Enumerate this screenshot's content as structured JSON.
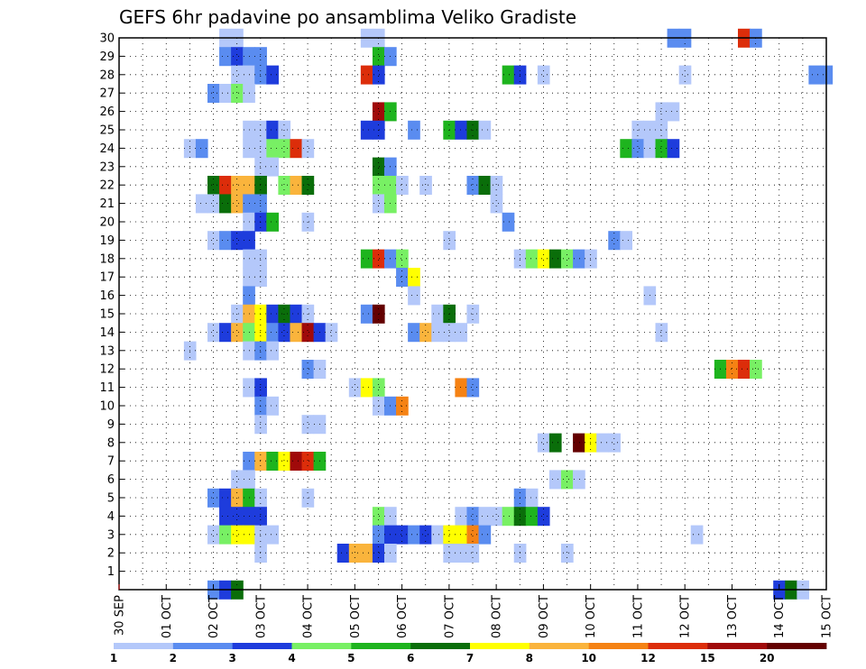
{
  "chart_data": {
    "type": "heatmap",
    "title": "GEFS 6hr padavine po ansamblima Veliko Gradiste",
    "x_tick_labels": [
      "30 SEP",
      "01 OCT",
      "02 OCT",
      "03 OCT",
      "04 OCT",
      "05 OCT",
      "06 OCT",
      "07 OCT",
      "08 OCT",
      "09 OCT",
      "10 OCT",
      "11 OCT",
      "12 OCT",
      "13 OCT",
      "14 OCT",
      "15 OCT"
    ],
    "x_range_days": [
      0,
      15
    ],
    "y_tick_labels": [
      "1",
      "2",
      "3",
      "4",
      "5",
      "6",
      "7",
      "8",
      "9",
      "10",
      "11",
      "12",
      "13",
      "14",
      "15",
      "16",
      "17",
      "18",
      "19",
      "20",
      "21",
      "22",
      "23",
      "24",
      "25",
      "26",
      "27",
      "28",
      "29",
      "30"
    ],
    "y_range_members": [
      0,
      30
    ],
    "legend_labels": [
      "1",
      "2",
      "3",
      "4",
      "5",
      "6",
      "7",
      "8",
      "10",
      "12",
      "15",
      "20"
    ],
    "legend_colors": [
      "#b4c8fa",
      "#5a8cf0",
      "#1e3cdc",
      "#78f064",
      "#1eb41e",
      "#0a6e0a",
      "#ffff00",
      "#fab43c",
      "#f58214",
      "#dc2d0a",
      "#a00a0a",
      "#640000"
    ],
    "cells": [
      [
        2.25,
        30,
        0
      ],
      [
        2.5,
        30,
        0
      ],
      [
        5.25,
        30,
        0
      ],
      [
        5.5,
        30,
        0
      ],
      [
        11.75,
        30,
        1
      ],
      [
        12.0,
        30,
        1
      ],
      [
        13.25,
        30,
        9
      ],
      [
        13.5,
        30,
        1
      ],
      [
        2.25,
        29,
        1
      ],
      [
        2.5,
        29,
        2
      ],
      [
        2.75,
        29,
        1
      ],
      [
        3.0,
        29,
        1
      ],
      [
        5.5,
        29,
        4
      ],
      [
        5.75,
        29,
        1
      ],
      [
        2.5,
        28,
        0
      ],
      [
        2.75,
        28,
        0
      ],
      [
        3.0,
        28,
        1
      ],
      [
        3.25,
        28,
        2
      ],
      [
        5.25,
        28,
        9
      ],
      [
        5.5,
        28,
        2
      ],
      [
        8.25,
        28,
        4
      ],
      [
        8.5,
        28,
        2
      ],
      [
        9.0,
        28,
        0
      ],
      [
        12.0,
        28,
        0
      ],
      [
        14.75,
        28,
        1
      ],
      [
        15.0,
        28,
        1
      ],
      [
        2.0,
        27,
        1
      ],
      [
        2.25,
        27,
        0
      ],
      [
        2.5,
        27,
        3
      ],
      [
        2.75,
        27,
        0
      ],
      [
        5.5,
        26,
        10
      ],
      [
        5.75,
        26,
        4
      ],
      [
        11.5,
        26,
        0
      ],
      [
        11.75,
        26,
        0
      ],
      [
        2.75,
        25,
        0
      ],
      [
        3.0,
        25,
        0
      ],
      [
        3.25,
        25,
        2
      ],
      [
        3.5,
        25,
        0
      ],
      [
        5.25,
        25,
        2
      ],
      [
        5.5,
        25,
        2
      ],
      [
        6.25,
        25,
        1
      ],
      [
        7.0,
        25,
        4
      ],
      [
        7.25,
        25,
        2
      ],
      [
        7.5,
        25,
        5
      ],
      [
        7.75,
        25,
        0
      ],
      [
        11.0,
        25,
        0
      ],
      [
        11.25,
        25,
        0
      ],
      [
        11.5,
        25,
        0
      ],
      [
        1.5,
        24,
        0
      ],
      [
        1.75,
        24,
        1
      ],
      [
        2.75,
        24,
        0
      ],
      [
        3.0,
        24,
        0
      ],
      [
        3.25,
        24,
        3
      ],
      [
        3.5,
        24,
        3
      ],
      [
        3.75,
        24,
        9
      ],
      [
        4.0,
        24,
        0
      ],
      [
        10.75,
        24,
        4
      ],
      [
        11.0,
        24,
        1
      ],
      [
        11.25,
        24,
        0
      ],
      [
        11.5,
        24,
        4
      ],
      [
        11.75,
        24,
        2
      ],
      [
        3.0,
        23,
        0
      ],
      [
        3.25,
        23,
        0
      ],
      [
        5.5,
        23,
        5
      ],
      [
        5.75,
        23,
        1
      ],
      [
        2.0,
        22,
        5
      ],
      [
        2.25,
        22,
        9
      ],
      [
        2.5,
        22,
        7
      ],
      [
        2.75,
        22,
        7
      ],
      [
        3.0,
        22,
        5
      ],
      [
        3.5,
        22,
        3
      ],
      [
        3.75,
        22,
        7
      ],
      [
        4.0,
        22,
        5
      ],
      [
        5.5,
        22,
        3
      ],
      [
        5.75,
        22,
        3
      ],
      [
        6.0,
        22,
        0
      ],
      [
        6.5,
        22,
        0
      ],
      [
        7.5,
        22,
        1
      ],
      [
        7.75,
        22,
        5
      ],
      [
        8.0,
        22,
        0
      ],
      [
        1.75,
        21,
        0
      ],
      [
        2.0,
        21,
        0
      ],
      [
        2.25,
        21,
        5
      ],
      [
        2.5,
        21,
        7
      ],
      [
        2.75,
        21,
        1
      ],
      [
        3.0,
        21,
        1
      ],
      [
        5.5,
        21,
        0
      ],
      [
        5.75,
        21,
        3
      ],
      [
        8.0,
        21,
        0
      ],
      [
        2.75,
        20,
        0
      ],
      [
        3.0,
        20,
        2
      ],
      [
        3.25,
        20,
        4
      ],
      [
        4.0,
        20,
        0
      ],
      [
        8.25,
        20,
        1
      ],
      [
        2.0,
        19,
        0
      ],
      [
        2.25,
        19,
        1
      ],
      [
        2.5,
        19,
        2
      ],
      [
        2.75,
        19,
        2
      ],
      [
        7.0,
        19,
        0
      ],
      [
        10.5,
        19,
        1
      ],
      [
        10.75,
        19,
        0
      ],
      [
        2.75,
        18,
        0
      ],
      [
        3.0,
        18,
        0
      ],
      [
        5.25,
        18,
        4
      ],
      [
        5.5,
        18,
        9
      ],
      [
        5.75,
        18,
        1
      ],
      [
        6.0,
        18,
        3
      ],
      [
        8.5,
        18,
        0
      ],
      [
        8.75,
        18,
        3
      ],
      [
        9.0,
        18,
        6
      ],
      [
        9.25,
        18,
        5
      ],
      [
        9.5,
        18,
        3
      ],
      [
        9.75,
        18,
        1
      ],
      [
        10.0,
        18,
        0
      ],
      [
        2.75,
        17,
        0
      ],
      [
        3.0,
        17,
        0
      ],
      [
        6.0,
        17,
        1
      ],
      [
        6.25,
        17,
        6
      ],
      [
        2.75,
        16,
        1
      ],
      [
        6.25,
        16,
        0
      ],
      [
        11.25,
        16,
        0
      ],
      [
        2.5,
        15,
        0
      ],
      [
        2.75,
        15,
        7
      ],
      [
        3.0,
        15,
        6
      ],
      [
        3.25,
        15,
        2
      ],
      [
        3.5,
        15,
        5
      ],
      [
        3.75,
        15,
        2
      ],
      [
        4.0,
        15,
        0
      ],
      [
        5.25,
        15,
        1
      ],
      [
        5.5,
        15,
        11
      ],
      [
        6.75,
        15,
        0
      ],
      [
        7.0,
        15,
        5
      ],
      [
        7.5,
        15,
        0
      ],
      [
        2.0,
        14,
        0
      ],
      [
        2.25,
        14,
        2
      ],
      [
        2.5,
        14,
        7
      ],
      [
        2.75,
        14,
        3
      ],
      [
        3.0,
        14,
        6
      ],
      [
        3.25,
        14,
        1
      ],
      [
        3.5,
        14,
        2
      ],
      [
        3.75,
        14,
        7
      ],
      [
        4.0,
        14,
        10
      ],
      [
        4.25,
        14,
        2
      ],
      [
        4.5,
        14,
        0
      ],
      [
        6.25,
        14,
        1
      ],
      [
        6.5,
        14,
        7
      ],
      [
        6.75,
        14,
        0
      ],
      [
        7.0,
        14,
        0
      ],
      [
        7.25,
        14,
        0
      ],
      [
        11.5,
        14,
        0
      ],
      [
        1.5,
        13,
        0
      ],
      [
        2.75,
        13,
        0
      ],
      [
        3.0,
        13,
        1
      ],
      [
        3.25,
        13,
        0
      ],
      [
        4.0,
        12,
        1
      ],
      [
        4.25,
        12,
        0
      ],
      [
        12.75,
        12,
        4
      ],
      [
        13.0,
        12,
        8
      ],
      [
        13.25,
        12,
        9
      ],
      [
        13.5,
        12,
        3
      ],
      [
        2.75,
        11,
        0
      ],
      [
        3.0,
        11,
        2
      ],
      [
        5.0,
        11,
        0
      ],
      [
        5.25,
        11,
        6
      ],
      [
        5.5,
        11,
        3
      ],
      [
        7.25,
        11,
        8
      ],
      [
        7.5,
        11,
        1
      ],
      [
        3.0,
        10,
        1
      ],
      [
        3.25,
        10,
        0
      ],
      [
        5.5,
        10,
        0
      ],
      [
        5.75,
        10,
        1
      ],
      [
        6.0,
        10,
        8
      ],
      [
        3.0,
        9,
        0
      ],
      [
        4.0,
        9,
        0
      ],
      [
        4.25,
        9,
        0
      ],
      [
        9.0,
        8,
        0
      ],
      [
        9.25,
        8,
        5
      ],
      [
        9.75,
        8,
        11
      ],
      [
        10.0,
        8,
        6
      ],
      [
        10.25,
        8,
        0
      ],
      [
        10.5,
        8,
        0
      ],
      [
        2.75,
        7,
        1
      ],
      [
        3.0,
        7,
        7
      ],
      [
        3.25,
        7,
        4
      ],
      [
        3.5,
        7,
        6
      ],
      [
        3.75,
        7,
        10
      ],
      [
        4.0,
        7,
        9
      ],
      [
        4.25,
        7,
        4
      ],
      [
        2.5,
        6,
        0
      ],
      [
        2.75,
        6,
        0
      ],
      [
        9.25,
        6,
        0
      ],
      [
        9.5,
        6,
        3
      ],
      [
        9.75,
        6,
        0
      ],
      [
        2.0,
        5,
        1
      ],
      [
        2.25,
        5,
        2
      ],
      [
        2.5,
        5,
        7
      ],
      [
        2.75,
        5,
        4
      ],
      [
        3.0,
        5,
        0
      ],
      [
        4.0,
        5,
        0
      ],
      [
        8.5,
        5,
        1
      ],
      [
        8.75,
        5,
        0
      ],
      [
        2.25,
        4,
        2
      ],
      [
        2.5,
        4,
        2
      ],
      [
        2.75,
        4,
        2
      ],
      [
        3.0,
        4,
        2
      ],
      [
        5.5,
        4,
        3
      ],
      [
        5.75,
        4,
        0
      ],
      [
        7.25,
        4,
        0
      ],
      [
        7.5,
        4,
        1
      ],
      [
        7.75,
        4,
        0
      ],
      [
        8.0,
        4,
        0
      ],
      [
        8.25,
        4,
        3
      ],
      [
        8.5,
        4,
        5
      ],
      [
        8.75,
        4,
        4
      ],
      [
        9.0,
        4,
        2
      ],
      [
        2.0,
        3,
        0
      ],
      [
        2.25,
        3,
        3
      ],
      [
        2.5,
        3,
        6
      ],
      [
        2.75,
        3,
        6
      ],
      [
        3.0,
        3,
        0
      ],
      [
        3.25,
        3,
        0
      ],
      [
        5.5,
        3,
        1
      ],
      [
        5.75,
        3,
        2
      ],
      [
        6.0,
        3,
        2
      ],
      [
        6.25,
        3,
        1
      ],
      [
        6.5,
        3,
        2
      ],
      [
        6.75,
        3,
        0
      ],
      [
        7.0,
        3,
        6
      ],
      [
        7.25,
        3,
        6
      ],
      [
        7.5,
        3,
        8
      ],
      [
        7.75,
        3,
        1
      ],
      [
        12.25,
        3,
        0
      ],
      [
        3.0,
        2,
        0
      ],
      [
        4.75,
        2,
        2
      ],
      [
        5.0,
        2,
        7
      ],
      [
        5.25,
        2,
        7
      ],
      [
        5.5,
        2,
        2
      ],
      [
        5.75,
        2,
        0
      ],
      [
        7.0,
        2,
        0
      ],
      [
        7.25,
        2,
        0
      ],
      [
        7.5,
        2,
        0
      ],
      [
        8.5,
        2,
        0
      ],
      [
        9.5,
        2,
        0
      ],
      [
        2.0,
        0,
        1
      ],
      [
        2.25,
        0,
        2
      ],
      [
        2.5,
        0,
        5
      ],
      [
        14.0,
        0,
        2
      ],
      [
        14.25,
        0,
        5
      ],
      [
        14.5,
        0,
        0
      ]
    ]
  }
}
